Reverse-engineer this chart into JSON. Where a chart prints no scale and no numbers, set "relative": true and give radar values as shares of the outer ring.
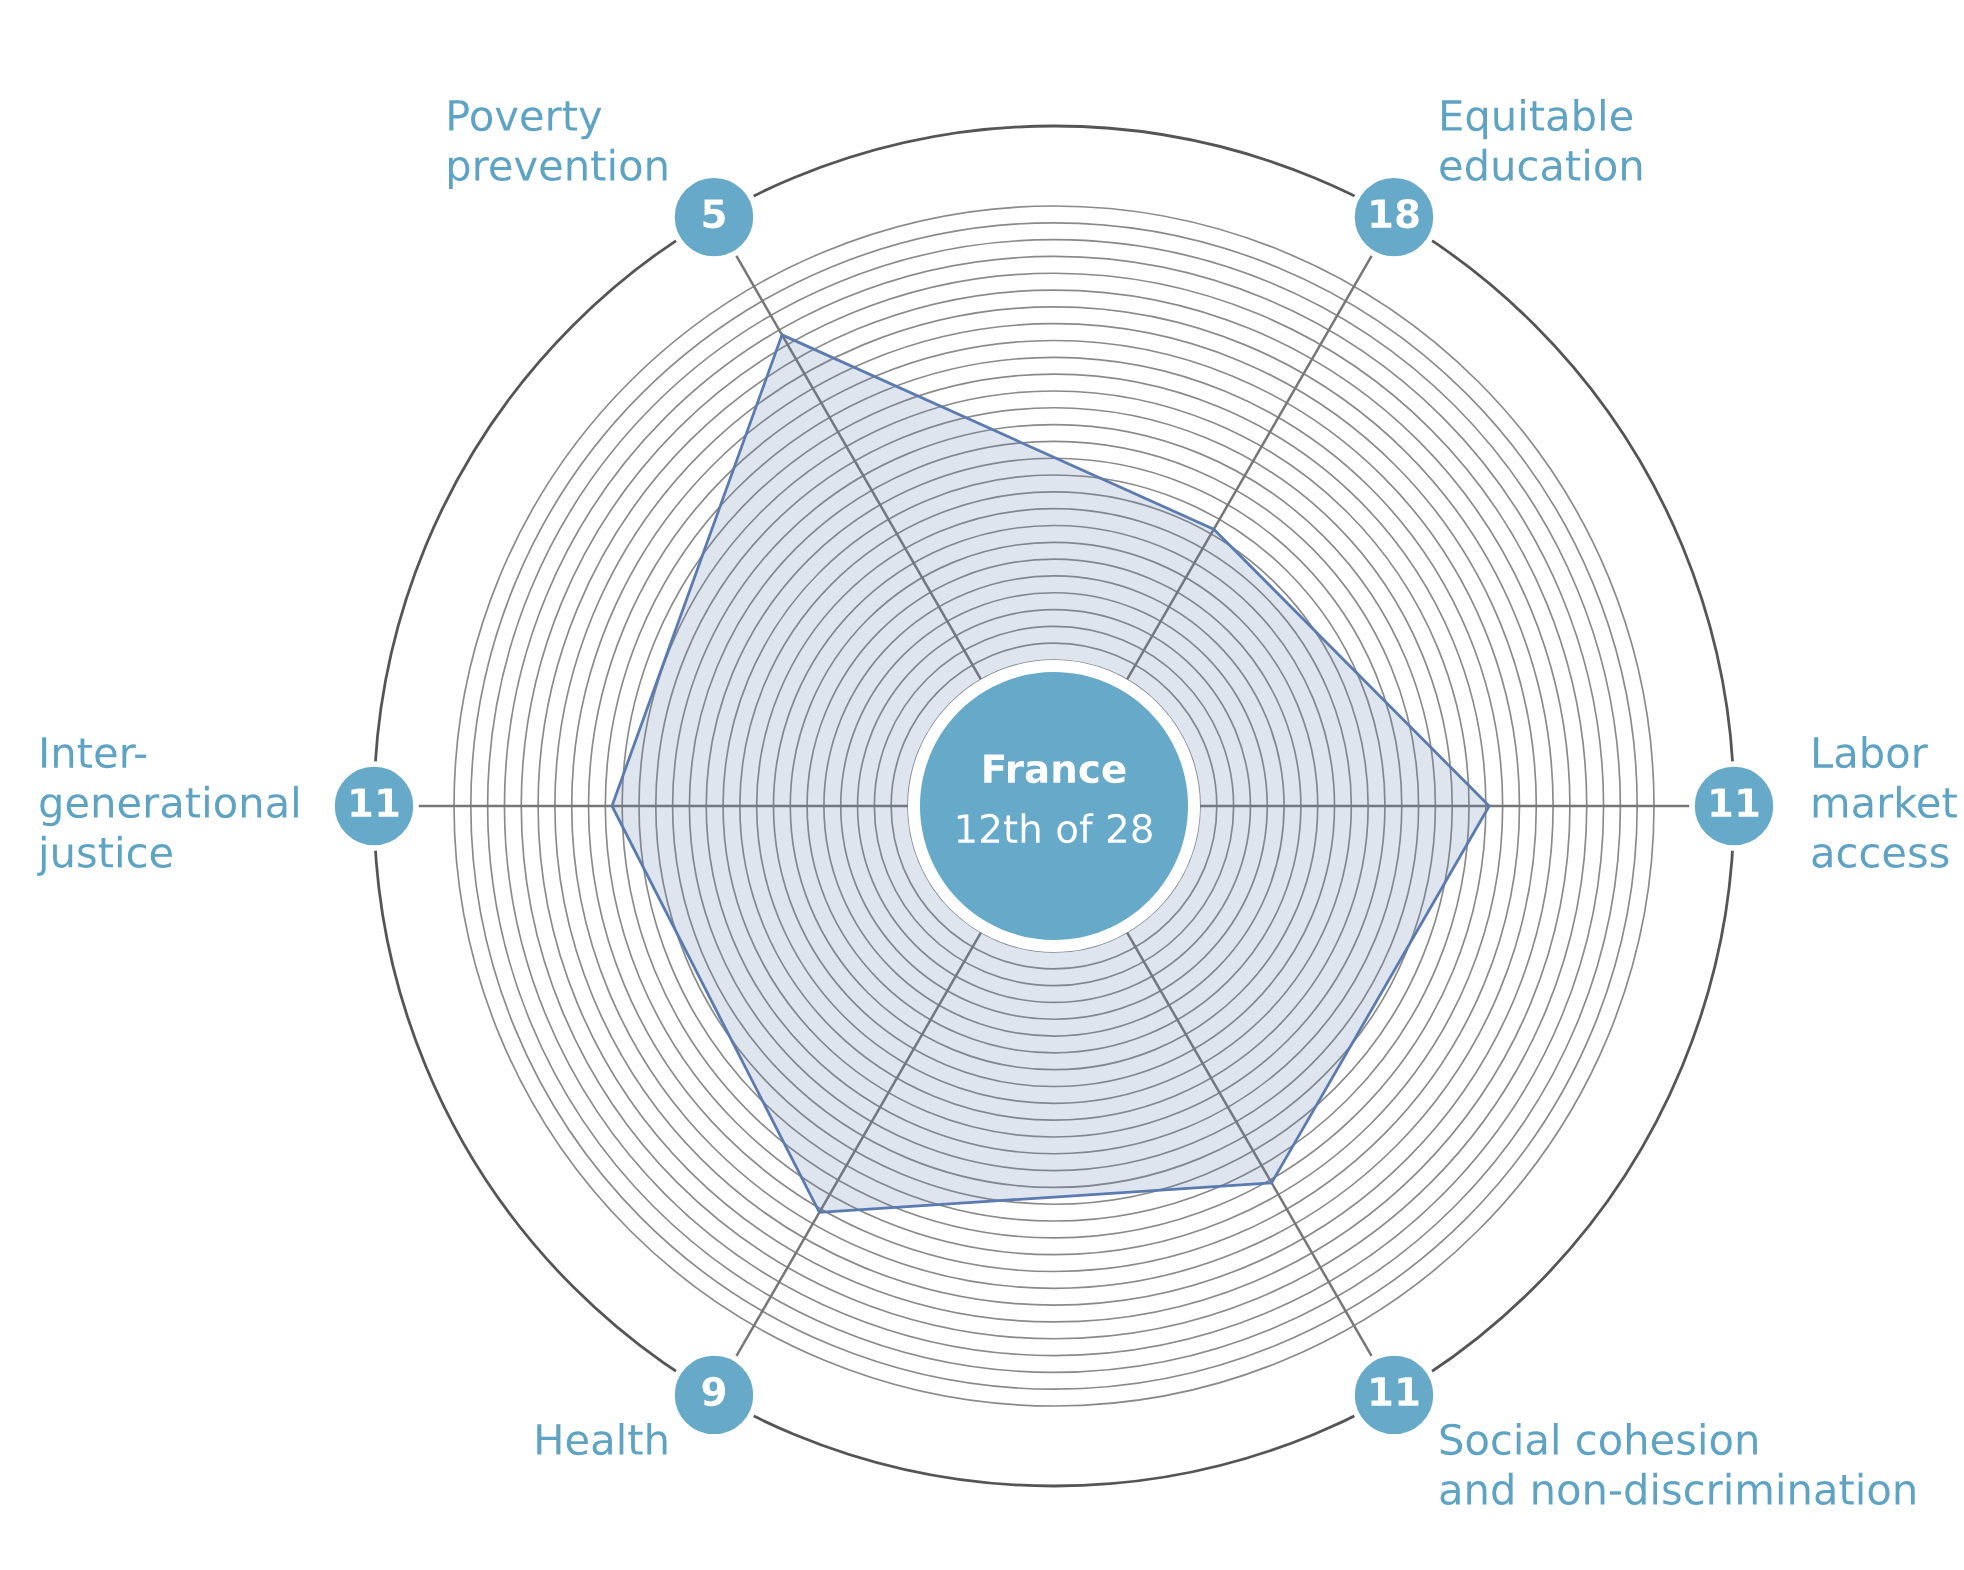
{
  "chart_data": {
    "type": "radar",
    "categories": [
      "Poverty\nprevention",
      "Equitable\neducation",
      "Labor\nmarket\naccess",
      "Social cohesion\nand non-discrimination",
      "Health",
      "Inter-\ngenerational\njustice"
    ],
    "series": [
      {
        "color": "#5b7bb0",
        "values": [
          0.8,
          0.47,
          0.64,
          0.64,
          0.69,
          0.65
        ]
      }
    ],
    "relative": true,
    "grid": true,
    "annotations": [
      "France",
      "12th of 28",
      {
        "text": "5",
        "x": "Poverty\nprevention"
      },
      {
        "text": "18",
        "x": "Equitable\neducation"
      },
      {
        "text": "11",
        "x": "Labor\nmarket\naccess"
      },
      {
        "text": "11",
        "x": "Social cohesion\nand non-discrimination"
      },
      {
        "text": "9",
        "x": "Health"
      },
      {
        "text": "11",
        "x": "Inter-\ngenerational\njustice"
      }
    ]
  }
}
